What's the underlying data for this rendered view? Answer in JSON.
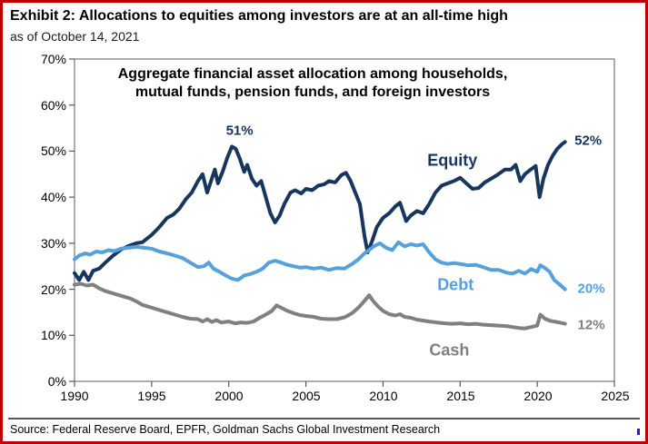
{
  "header": {
    "title": "Exhibit 2: Allocations to equities among investors are at an all-time high",
    "subtitle": "as of October 14, 2021"
  },
  "footer": {
    "source": "Source: Federal Reserve Board, EPFR, Goldman Sachs Global Investment Research"
  },
  "colors": {
    "equity": "#17365d",
    "debt": "#56a0dc",
    "cash": "#808080",
    "frame": "#7f7f7f",
    "ticks": "#595959",
    "page_border": "#c00000"
  },
  "chart_data": {
    "type": "line",
    "title": "Aggregate financial asset allocation among households, mutual funds, pension funds, and foreign investors",
    "title_lines": [
      "Aggregate financial asset allocation among households,",
      "mutual funds, pension funds, and foreign investors"
    ],
    "xlabel": "",
    "ylabel": "",
    "grid": false,
    "legend_position": "inline-labels",
    "xlim": [
      1990,
      2025
    ],
    "ylim": [
      0,
      70
    ],
    "xticks": [
      1990,
      1995,
      2000,
      2005,
      2010,
      2015,
      2020,
      2025
    ],
    "xtick_labels": [
      "1990",
      "1995",
      "2000",
      "2005",
      "2010",
      "2015",
      "2020",
      "2025"
    ],
    "yticks": [
      70,
      60,
      50,
      40,
      30,
      20,
      10,
      0
    ],
    "ytick_labels": [
      "70%",
      "60%",
      "50%",
      "40%",
      "30%",
      "20%",
      "10%",
      "0%"
    ],
    "series": [
      {
        "name": "Equity",
        "color": "#17365d",
        "points": [
          [
            1990.0,
            23.5
          ],
          [
            1990.3,
            22.0
          ],
          [
            1990.6,
            23.8
          ],
          [
            1990.9,
            22.0
          ],
          [
            1991.2,
            24.0
          ],
          [
            1991.6,
            24.5
          ],
          [
            1992.0,
            25.8
          ],
          [
            1992.5,
            27.3
          ],
          [
            1993.0,
            28.6
          ],
          [
            1993.5,
            29.4
          ],
          [
            1994.0,
            30.0
          ],
          [
            1994.4,
            30.2
          ],
          [
            1995.0,
            31.8
          ],
          [
            1995.5,
            33.5
          ],
          [
            1996.0,
            35.5
          ],
          [
            1996.4,
            36.2
          ],
          [
            1996.8,
            37.5
          ],
          [
            1997.2,
            39.5
          ],
          [
            1997.6,
            41.0
          ],
          [
            1998.0,
            43.5
          ],
          [
            1998.3,
            45.0
          ],
          [
            1998.6,
            41.0
          ],
          [
            1998.9,
            44.0
          ],
          [
            1999.1,
            46.0
          ],
          [
            1999.3,
            43.0
          ],
          [
            1999.6,
            45.5
          ],
          [
            1999.9,
            48.5
          ],
          [
            2000.2,
            51.0
          ],
          [
            2000.45,
            50.5
          ],
          [
            2000.7,
            48.5
          ],
          [
            2001.0,
            45.5
          ],
          [
            2001.2,
            47.0
          ],
          [
            2001.5,
            44.0
          ],
          [
            2001.8,
            42.5
          ],
          [
            2002.1,
            43.5
          ],
          [
            2002.4,
            40.0
          ],
          [
            2002.7,
            36.5
          ],
          [
            2003.0,
            34.5
          ],
          [
            2003.3,
            36.0
          ],
          [
            2003.6,
            38.5
          ],
          [
            2004.0,
            41.0
          ],
          [
            2004.3,
            41.5
          ],
          [
            2004.7,
            40.8
          ],
          [
            2005.0,
            41.8
          ],
          [
            2005.4,
            41.5
          ],
          [
            2005.8,
            42.5
          ],
          [
            2006.2,
            42.8
          ],
          [
            2006.5,
            43.5
          ],
          [
            2006.9,
            43.2
          ],
          [
            2007.3,
            44.8
          ],
          [
            2007.6,
            45.3
          ],
          [
            2007.9,
            43.5
          ],
          [
            2008.2,
            41.0
          ],
          [
            2008.5,
            38.5
          ],
          [
            2008.8,
            31.5
          ],
          [
            2009.0,
            28.0
          ],
          [
            2009.3,
            30.5
          ],
          [
            2009.6,
            33.5
          ],
          [
            2010.0,
            35.5
          ],
          [
            2010.4,
            36.5
          ],
          [
            2010.8,
            38.0
          ],
          [
            2011.1,
            38.8
          ],
          [
            2011.5,
            34.8
          ],
          [
            2011.8,
            36.0
          ],
          [
            2012.2,
            37.0
          ],
          [
            2012.6,
            36.5
          ],
          [
            2013.0,
            38.5
          ],
          [
            2013.4,
            41.0
          ],
          [
            2013.8,
            42.5
          ],
          [
            2014.2,
            43.0
          ],
          [
            2014.6,
            43.5
          ],
          [
            2015.0,
            44.2
          ],
          [
            2015.4,
            43.0
          ],
          [
            2015.8,
            41.8
          ],
          [
            2016.2,
            42.0
          ],
          [
            2016.6,
            43.2
          ],
          [
            2017.0,
            44.0
          ],
          [
            2017.4,
            44.8
          ],
          [
            2017.9,
            46.0
          ],
          [
            2018.3,
            46.0
          ],
          [
            2018.6,
            47.0
          ],
          [
            2018.9,
            43.5
          ],
          [
            2019.2,
            45.0
          ],
          [
            2019.5,
            45.8
          ],
          [
            2019.9,
            46.8
          ],
          [
            2020.15,
            40.0
          ],
          [
            2020.4,
            44.0
          ],
          [
            2020.7,
            47.0
          ],
          [
            2021.0,
            49.0
          ],
          [
            2021.3,
            50.5
          ],
          [
            2021.6,
            51.5
          ],
          [
            2021.8,
            52.0
          ]
        ]
      },
      {
        "name": "Debt",
        "color": "#56a0dc",
        "points": [
          [
            1990.0,
            26.5
          ],
          [
            1990.3,
            27.3
          ],
          [
            1990.7,
            27.8
          ],
          [
            1991.0,
            27.5
          ],
          [
            1991.4,
            28.2
          ],
          [
            1991.8,
            28.0
          ],
          [
            1992.2,
            28.5
          ],
          [
            1992.6,
            28.3
          ],
          [
            1993.0,
            28.8
          ],
          [
            1993.5,
            29.0
          ],
          [
            1994.0,
            29.2
          ],
          [
            1994.5,
            29.0
          ],
          [
            1995.0,
            28.8
          ],
          [
            1995.5,
            28.2
          ],
          [
            1996.0,
            27.8
          ],
          [
            1996.5,
            27.3
          ],
          [
            1997.0,
            26.8
          ],
          [
            1997.5,
            25.8
          ],
          [
            1998.0,
            24.8
          ],
          [
            1998.4,
            25.0
          ],
          [
            1998.7,
            25.8
          ],
          [
            1999.0,
            24.5
          ],
          [
            1999.4,
            23.8
          ],
          [
            1999.8,
            23.0
          ],
          [
            2000.2,
            22.3
          ],
          [
            2000.6,
            22.0
          ],
          [
            2001.0,
            23.0
          ],
          [
            2001.4,
            23.3
          ],
          [
            2001.8,
            23.8
          ],
          [
            2002.2,
            24.5
          ],
          [
            2002.6,
            25.8
          ],
          [
            2003.0,
            26.2
          ],
          [
            2003.4,
            25.8
          ],
          [
            2003.8,
            25.3
          ],
          [
            2004.2,
            25.0
          ],
          [
            2004.6,
            24.7
          ],
          [
            2005.0,
            24.8
          ],
          [
            2005.5,
            24.5
          ],
          [
            2006.0,
            24.7
          ],
          [
            2006.5,
            24.2
          ],
          [
            2007.0,
            24.6
          ],
          [
            2007.5,
            24.5
          ],
          [
            2008.0,
            25.5
          ],
          [
            2008.4,
            26.5
          ],
          [
            2008.8,
            27.8
          ],
          [
            2009.0,
            28.3
          ],
          [
            2009.4,
            29.3
          ],
          [
            2009.8,
            30.0
          ],
          [
            2010.2,
            29.0
          ],
          [
            2010.6,
            28.5
          ],
          [
            2011.0,
            30.2
          ],
          [
            2011.4,
            29.3
          ],
          [
            2011.8,
            29.8
          ],
          [
            2012.2,
            29.5
          ],
          [
            2012.6,
            29.8
          ],
          [
            2013.0,
            28.0
          ],
          [
            2013.4,
            26.5
          ],
          [
            2013.8,
            25.8
          ],
          [
            2014.2,
            25.5
          ],
          [
            2014.6,
            25.7
          ],
          [
            2015.0,
            25.5
          ],
          [
            2015.5,
            25.2
          ],
          [
            2016.0,
            25.3
          ],
          [
            2016.5,
            24.8
          ],
          [
            2017.0,
            24.2
          ],
          [
            2017.5,
            24.2
          ],
          [
            2018.0,
            23.6
          ],
          [
            2018.4,
            23.4
          ],
          [
            2018.8,
            24.0
          ],
          [
            2019.2,
            23.4
          ],
          [
            2019.6,
            24.4
          ],
          [
            2020.0,
            23.8
          ],
          [
            2020.2,
            25.2
          ],
          [
            2020.5,
            24.6
          ],
          [
            2020.8,
            23.8
          ],
          [
            2021.1,
            22.0
          ],
          [
            2021.4,
            21.2
          ],
          [
            2021.8,
            20.0
          ]
        ]
      },
      {
        "name": "Cash",
        "color": "#808080",
        "points": [
          [
            1990.0,
            21.0
          ],
          [
            1990.4,
            21.2
          ],
          [
            1990.8,
            20.8
          ],
          [
            1991.2,
            21.0
          ],
          [
            1991.6,
            20.2
          ],
          [
            1992.0,
            19.6
          ],
          [
            1992.4,
            19.2
          ],
          [
            1992.8,
            18.8
          ],
          [
            1993.2,
            18.4
          ],
          [
            1993.6,
            18.0
          ],
          [
            1994.0,
            17.4
          ],
          [
            1994.4,
            16.6
          ],
          [
            1994.8,
            16.2
          ],
          [
            1995.2,
            15.8
          ],
          [
            1995.6,
            15.4
          ],
          [
            1996.0,
            15.0
          ],
          [
            1996.5,
            14.5
          ],
          [
            1997.0,
            14.0
          ],
          [
            1997.5,
            13.6
          ],
          [
            1998.0,
            13.5
          ],
          [
            1998.3,
            13.0
          ],
          [
            1998.6,
            13.5
          ],
          [
            1998.9,
            12.9
          ],
          [
            1999.2,
            13.3
          ],
          [
            1999.5,
            12.8
          ],
          [
            2000.0,
            13.0
          ],
          [
            2000.4,
            12.6
          ],
          [
            2000.8,
            12.8
          ],
          [
            2001.2,
            12.7
          ],
          [
            2001.6,
            13.0
          ],
          [
            2002.0,
            13.8
          ],
          [
            2002.4,
            14.5
          ],
          [
            2002.8,
            15.3
          ],
          [
            2003.1,
            16.5
          ],
          [
            2003.4,
            16.0
          ],
          [
            2003.8,
            15.3
          ],
          [
            2004.2,
            14.8
          ],
          [
            2004.6,
            14.4
          ],
          [
            2005.0,
            14.2
          ],
          [
            2005.5,
            14.0
          ],
          [
            2006.0,
            13.6
          ],
          [
            2006.5,
            13.5
          ],
          [
            2007.0,
            13.5
          ],
          [
            2007.5,
            13.9
          ],
          [
            2008.0,
            14.8
          ],
          [
            2008.4,
            16.0
          ],
          [
            2008.8,
            17.5
          ],
          [
            2009.1,
            18.7
          ],
          [
            2009.4,
            17.3
          ],
          [
            2009.7,
            16.2
          ],
          [
            2010.0,
            15.3
          ],
          [
            2010.4,
            14.6
          ],
          [
            2010.8,
            14.3
          ],
          [
            2011.1,
            14.6
          ],
          [
            2011.4,
            14.0
          ],
          [
            2011.8,
            13.8
          ],
          [
            2012.2,
            13.4
          ],
          [
            2012.6,
            13.2
          ],
          [
            2013.0,
            13.0
          ],
          [
            2013.5,
            12.8
          ],
          [
            2014.0,
            12.6
          ],
          [
            2014.5,
            12.5
          ],
          [
            2015.0,
            12.6
          ],
          [
            2015.5,
            12.4
          ],
          [
            2016.0,
            12.5
          ],
          [
            2016.5,
            12.3
          ],
          [
            2017.0,
            12.2
          ],
          [
            2017.5,
            12.1
          ],
          [
            2018.0,
            12.0
          ],
          [
            2018.4,
            11.8
          ],
          [
            2018.8,
            11.6
          ],
          [
            2019.2,
            11.5
          ],
          [
            2019.6,
            11.8
          ],
          [
            2020.0,
            12.1
          ],
          [
            2020.2,
            14.5
          ],
          [
            2020.5,
            13.6
          ],
          [
            2020.8,
            13.2
          ],
          [
            2021.1,
            13.0
          ],
          [
            2021.4,
            12.8
          ],
          [
            2021.8,
            12.5
          ]
        ]
      }
    ],
    "annotations": [
      {
        "text": "51%",
        "x": 2000.7,
        "y": 54.5,
        "color": "#17365d",
        "size": 15
      },
      {
        "text": "52%",
        "x": 2023.3,
        "y": 52.2,
        "color": "#17365d",
        "size": 15
      },
      {
        "text": "Equity",
        "x": 2014.5,
        "y": 48.0,
        "color": "#17365d",
        "size": 18
      },
      {
        "text": "Debt",
        "x": 2014.7,
        "y": 20.9,
        "color": "#56a0dc",
        "size": 18
      },
      {
        "text": "20%",
        "x": 2023.5,
        "y": 20.2,
        "color": "#56a0dc",
        "size": 15
      },
      {
        "text": "Cash",
        "x": 2014.3,
        "y": 6.7,
        "color": "#808080",
        "size": 18
      },
      {
        "text": "12%",
        "x": 2023.5,
        "y": 12.2,
        "color": "#808080",
        "size": 15
      }
    ]
  }
}
